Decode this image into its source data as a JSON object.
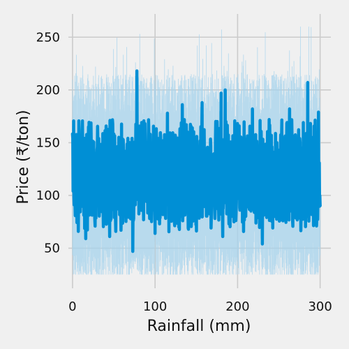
{
  "chart_data": {
    "type": "line",
    "title": "",
    "xlabel": "Rainfall (mm)",
    "ylabel": "Price (₹/ton)",
    "xlim": [
      -5,
      313
    ],
    "ylim": [
      12,
      272
    ],
    "x_ticks": [
      0,
      100,
      200,
      300
    ],
    "y_ticks": [
      50,
      100,
      150,
      200,
      250
    ],
    "x_tick_labels": [
      "0",
      "100",
      "200",
      "300"
    ],
    "y_tick_labels": [
      "50",
      "100",
      "150",
      "200",
      "250"
    ],
    "grid": true,
    "legend": "none",
    "series": [
      {
        "color": "#008fd5",
        "x_range": [
          0,
          300
        ],
        "mean": 115,
        "band_low": 75,
        "band_high": 160,
        "max": 218,
        "max_at_x": 78,
        "min": 47,
        "min_at_x": 73,
        "peaks": [
          {
            "x": 78,
            "y": 218
          },
          {
            "x": 285,
            "y": 207
          },
          {
            "x": 180,
            "y": 197
          },
          {
            "x": 185,
            "y": 200
          },
          {
            "x": 157,
            "y": 188
          },
          {
            "x": 133,
            "y": 186
          },
          {
            "x": 115,
            "y": 178
          },
          {
            "x": 218,
            "y": 182
          },
          {
            "x": 263,
            "y": 182
          },
          {
            "x": 298,
            "y": 179
          }
        ],
        "troughs": [
          {
            "x": 73,
            "y": 47
          },
          {
            "x": 230,
            "y": 54
          },
          {
            "x": 16,
            "y": 59
          },
          {
            "x": 45,
            "y": 61
          },
          {
            "x": 182,
            "y": 61
          },
          {
            "x": 100,
            "y": 64
          }
        ]
      }
    ],
    "confidence_band": {
      "color": "#a6d3ec",
      "low": 25,
      "high": 260
    }
  }
}
